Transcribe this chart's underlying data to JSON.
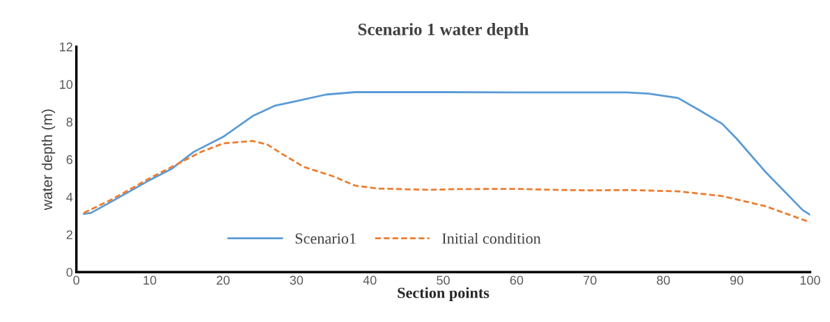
{
  "chart_data": {
    "type": "line",
    "title": "Scenario 1 water depth",
    "xlabel": "Section points",
    "ylabel": "water depth (m)",
    "xlim": [
      0,
      100
    ],
    "xticks": [
      0,
      10,
      20,
      30,
      40,
      50,
      60,
      70,
      80,
      90,
      100
    ],
    "ylim": [
      0,
      12
    ],
    "yticks": [
      0,
      2,
      4,
      6,
      8,
      10,
      12
    ],
    "grid": false,
    "legend": "bottom",
    "marker": "none",
    "series": [
      {
        "name": "Scenario1",
        "color": "#5b9bd5",
        "line_style": "solid",
        "x": [
          1,
          2,
          5,
          10,
          13,
          16,
          20,
          24,
          27,
          30,
          34,
          38,
          50,
          60,
          75,
          78,
          82,
          85,
          88,
          90,
          94,
          99,
          100
        ],
        "values": [
          3.1,
          3.15,
          3.8,
          4.9,
          5.5,
          6.4,
          7.2,
          8.3,
          8.85,
          9.1,
          9.45,
          9.58,
          9.58,
          9.57,
          9.57,
          9.5,
          9.27,
          8.6,
          7.9,
          7.1,
          5.3,
          3.3,
          3.05
        ]
      },
      {
        "name": "Initial condition",
        "color": "#ed7d31",
        "line_style": "dashed",
        "x": [
          1,
          5,
          10,
          13,
          17,
          20,
          24,
          26,
          28,
          31,
          35,
          38,
          41,
          48,
          52,
          60,
          65,
          70,
          75,
          82,
          88,
          94,
          100
        ],
        "values": [
          3.15,
          3.9,
          5.0,
          5.6,
          6.4,
          6.85,
          6.98,
          6.8,
          6.3,
          5.6,
          5.1,
          4.6,
          4.45,
          4.38,
          4.42,
          4.43,
          4.38,
          4.35,
          4.37,
          4.3,
          4.05,
          3.5,
          2.65
        ]
      }
    ]
  }
}
